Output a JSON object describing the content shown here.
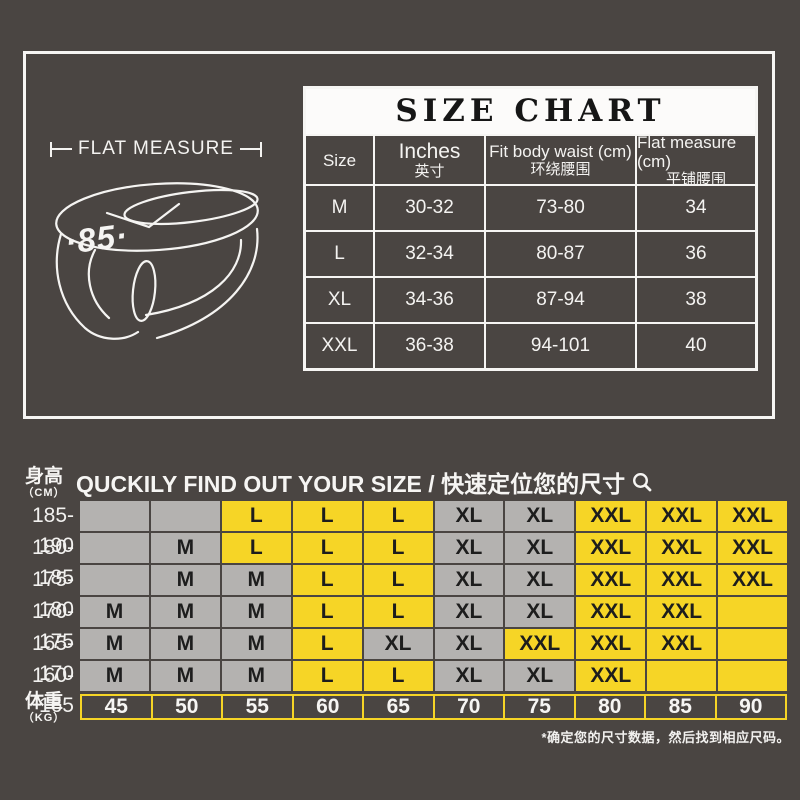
{
  "colors": {
    "background": "#4a4542",
    "panel_border": "#f6f5f3",
    "table_band_bg": "#fcfbfa",
    "table_text": "#f4f3f1",
    "grid_gray": "#b4b2b0",
    "grid_yellow": "#f6d526",
    "grid_text": "#1d1d1d"
  },
  "icons": {
    "magnifier": "magnifying-glass outline"
  },
  "flat_measure": {
    "label": "FLAT MEASURE",
    "waistband_logo": "·85·"
  },
  "size_chart": {
    "title": "SIZE CHART",
    "columns": [
      {
        "en": "Size",
        "zh": ""
      },
      {
        "en": "Inches",
        "zh": "英寸"
      },
      {
        "en": "Fit body waist (cm)",
        "zh": "环绕腰围"
      },
      {
        "en": "Flat measure (cm)",
        "zh": "平铺腰围"
      }
    ],
    "rows": [
      {
        "size": "M",
        "inches": "30-32",
        "fit": "73-80",
        "flat": "34"
      },
      {
        "size": "L",
        "inches": "32-34",
        "fit": "80-87",
        "flat": "36"
      },
      {
        "size": "XL",
        "inches": "34-36",
        "fit": "87-94",
        "flat": "38"
      },
      {
        "size": "XXL",
        "inches": "36-38",
        "fit": "94-101",
        "flat": "40"
      }
    ]
  },
  "finder": {
    "title": "QUCKILY FIND OUT YOUR SIZE / 快速定位您的尺寸",
    "height_label": "身高",
    "height_unit": "（CM）",
    "weight_label": "体重",
    "weight_unit": "（KG）",
    "weights": [
      "45",
      "50",
      "55",
      "60",
      "65",
      "70",
      "75",
      "80",
      "85",
      "90"
    ],
    "note": "*确定您的尺寸数据，然后找到相应尺码。",
    "rows": [
      {
        "label": "185-190",
        "cells": [
          {
            "t": "",
            "y": 0
          },
          {
            "t": "",
            "y": 0
          },
          {
            "t": "L",
            "y": 1
          },
          {
            "t": "L",
            "y": 1
          },
          {
            "t": "L",
            "y": 1
          },
          {
            "t": "XL",
            "y": 0
          },
          {
            "t": "XL",
            "y": 0
          },
          {
            "t": "XXL",
            "y": 1
          },
          {
            "t": "XXL",
            "y": 1
          },
          {
            "t": "XXL",
            "y": 1
          }
        ]
      },
      {
        "label": "180-185",
        "cells": [
          {
            "t": "",
            "y": 0
          },
          {
            "t": "M",
            "y": 0
          },
          {
            "t": "L",
            "y": 1
          },
          {
            "t": "L",
            "y": 1
          },
          {
            "t": "L",
            "y": 1
          },
          {
            "t": "XL",
            "y": 0
          },
          {
            "t": "XL",
            "y": 0
          },
          {
            "t": "XXL",
            "y": 1
          },
          {
            "t": "XXL",
            "y": 1
          },
          {
            "t": "XXL",
            "y": 1
          }
        ]
      },
      {
        "label": "175-180",
        "cells": [
          {
            "t": "",
            "y": 0
          },
          {
            "t": "M",
            "y": 0
          },
          {
            "t": "M",
            "y": 0
          },
          {
            "t": "L",
            "y": 1
          },
          {
            "t": "L",
            "y": 1
          },
          {
            "t": "XL",
            "y": 0
          },
          {
            "t": "XL",
            "y": 0
          },
          {
            "t": "XXL",
            "y": 1
          },
          {
            "t": "XXL",
            "y": 1
          },
          {
            "t": "XXL",
            "y": 1
          }
        ]
      },
      {
        "label": "170-175",
        "cells": [
          {
            "t": "M",
            "y": 0
          },
          {
            "t": "M",
            "y": 0
          },
          {
            "t": "M",
            "y": 0
          },
          {
            "t": "L",
            "y": 1
          },
          {
            "t": "L",
            "y": 1
          },
          {
            "t": "XL",
            "y": 0
          },
          {
            "t": "XL",
            "y": 0
          },
          {
            "t": "XXL",
            "y": 1
          },
          {
            "t": "XXL",
            "y": 1
          },
          {
            "t": "",
            "y": 1
          }
        ]
      },
      {
        "label": "165-170",
        "cells": [
          {
            "t": "M",
            "y": 0
          },
          {
            "t": "M",
            "y": 0
          },
          {
            "t": "M",
            "y": 0
          },
          {
            "t": "L",
            "y": 1
          },
          {
            "t": "XL",
            "y": 0
          },
          {
            "t": "XL",
            "y": 0
          },
          {
            "t": "XXL",
            "y": 1
          },
          {
            "t": "XXL",
            "y": 1
          },
          {
            "t": "XXL",
            "y": 1
          },
          {
            "t": "",
            "y": 1
          }
        ]
      },
      {
        "label": "160-165",
        "cells": [
          {
            "t": "M",
            "y": 0
          },
          {
            "t": "M",
            "y": 0
          },
          {
            "t": "M",
            "y": 0
          },
          {
            "t": "L",
            "y": 1
          },
          {
            "t": "L",
            "y": 1
          },
          {
            "t": "XL",
            "y": 0
          },
          {
            "t": "XL",
            "y": 0
          },
          {
            "t": "XXL",
            "y": 1
          },
          {
            "t": "",
            "y": 1
          },
          {
            "t": "",
            "y": 1
          }
        ]
      }
    ]
  },
  "chart_data": [
    {
      "type": "table",
      "title": "SIZE CHART",
      "columns": [
        "Size",
        "Inches 英寸",
        "Fit body waist (cm) 环绕腰围",
        "Flat measure (cm) 平铺腰围"
      ],
      "rows": [
        [
          "M",
          "30-32",
          "73-80",
          "34"
        ],
        [
          "L",
          "32-34",
          "80-87",
          "36"
        ],
        [
          "XL",
          "34-36",
          "87-94",
          "38"
        ],
        [
          "XXL",
          "36-38",
          "94-101",
          "40"
        ]
      ]
    },
    {
      "type": "table",
      "title": "QUCKILY FIND OUT YOUR SIZE / 快速定位您的尺寸",
      "row_axis": "身高（CM）",
      "col_axis": "体重（KG）",
      "row_labels": [
        "185-190",
        "180-185",
        "175-180",
        "170-175",
        "165-170",
        "160-165"
      ],
      "col_labels": [
        "45",
        "50",
        "55",
        "60",
        "65",
        "70",
        "75",
        "80",
        "85",
        "90"
      ],
      "cells": [
        [
          "",
          "",
          "L",
          "L",
          "L",
          "XL",
          "XL",
          "XXL",
          "XXL",
          "XXL"
        ],
        [
          "",
          "M",
          "L",
          "L",
          "L",
          "XL",
          "XL",
          "XXL",
          "XXL",
          "XXL"
        ],
        [
          "",
          "M",
          "M",
          "L",
          "L",
          "XL",
          "XL",
          "XXL",
          "XXL",
          "XXL"
        ],
        [
          "M",
          "M",
          "M",
          "L",
          "L",
          "XL",
          "XL",
          "XXL",
          "XXL",
          ""
        ],
        [
          "M",
          "M",
          "M",
          "L",
          "XL",
          "XL",
          "XXL",
          "XXL",
          "XXL",
          ""
        ],
        [
          "M",
          "M",
          "M",
          "L",
          "L",
          "XL",
          "XL",
          "XXL",
          "",
          ""
        ]
      ],
      "highlight_yellow": [
        [
          0,
          0,
          1,
          1,
          1,
          0,
          0,
          1,
          1,
          1
        ],
        [
          0,
          0,
          1,
          1,
          1,
          0,
          0,
          1,
          1,
          1
        ],
        [
          0,
          0,
          0,
          1,
          1,
          0,
          0,
          1,
          1,
          1
        ],
        [
          0,
          0,
          0,
          1,
          1,
          0,
          0,
          1,
          1,
          1
        ],
        [
          0,
          0,
          0,
          1,
          0,
          0,
          1,
          1,
          1,
          1
        ],
        [
          0,
          0,
          0,
          1,
          1,
          0,
          0,
          1,
          1,
          1
        ]
      ],
      "note": "*确定您的尺寸数据，然后找到相应尺码。"
    }
  ]
}
